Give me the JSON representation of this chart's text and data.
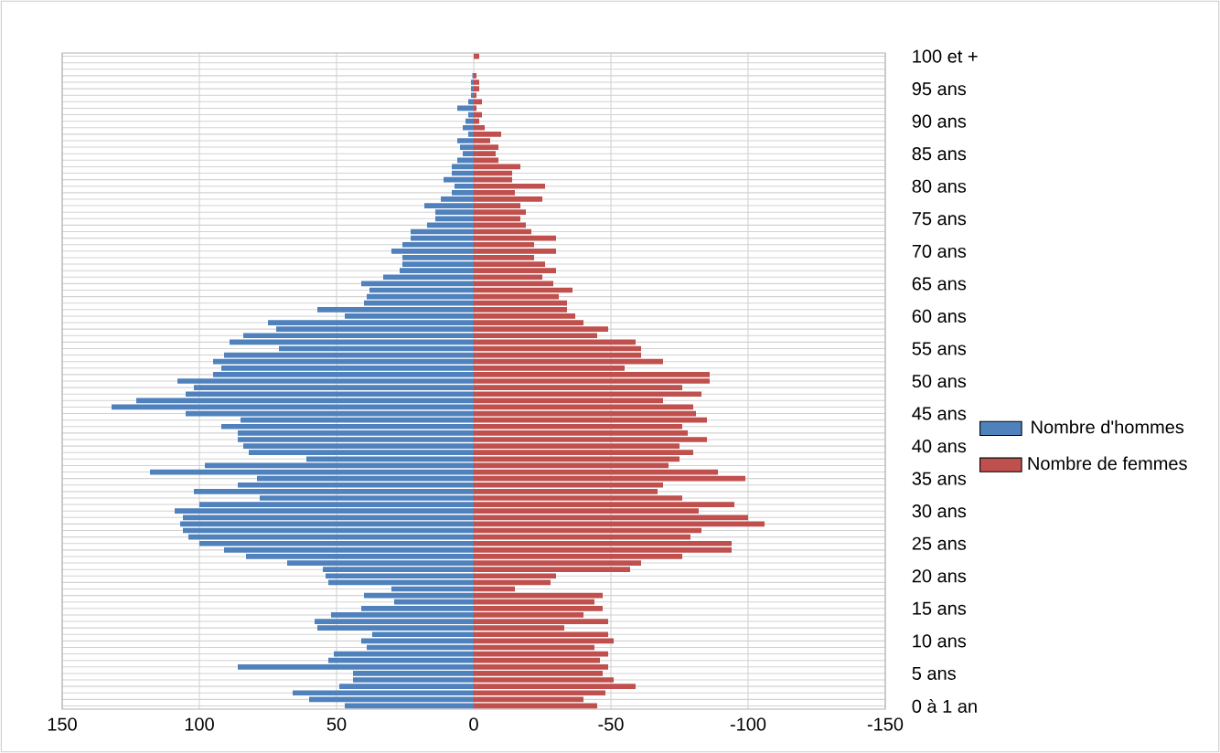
{
  "chart_data": {
    "type": "bar",
    "orientation": "horizontal",
    "categories": [
      "100 et +",
      null,
      null,
      null,
      null,
      "95 ans",
      null,
      null,
      null,
      null,
      "90 ans",
      null,
      null,
      null,
      null,
      "85 ans",
      null,
      null,
      null,
      null,
      "80 ans",
      null,
      null,
      null,
      null,
      "75 ans",
      null,
      null,
      null,
      null,
      "70 ans",
      null,
      null,
      null,
      null,
      "65 ans",
      null,
      null,
      null,
      null,
      "60 ans",
      null,
      null,
      null,
      null,
      "55 ans",
      null,
      null,
      null,
      null,
      "50 ans",
      null,
      null,
      null,
      null,
      "45 ans",
      null,
      null,
      null,
      null,
      "40 ans",
      null,
      null,
      null,
      null,
      "35 ans",
      null,
      null,
      null,
      null,
      "30 ans",
      null,
      null,
      null,
      null,
      "25 ans",
      null,
      null,
      null,
      null,
      "20 ans",
      null,
      null,
      null,
      null,
      "15 ans",
      null,
      null,
      null,
      null,
      "10 ans",
      null,
      null,
      null,
      null,
      "5 ans",
      null,
      null,
      null,
      null,
      "0 à 1 an"
    ],
    "series": [
      {
        "name": "Nombre de femmes",
        "color": "#c0504d",
        "values": [
          -2,
          0,
          0,
          -1,
          -2,
          -2,
          -1,
          -3,
          -1,
          -3,
          -2,
          -4,
          -10,
          -6,
          -9,
          -8,
          -9,
          -17,
          -14,
          -14,
          -26,
          -15,
          -25,
          -17,
          -19,
          -17,
          -19,
          -21,
          -30,
          -22,
          -30,
          -22,
          -26,
          -30,
          -25,
          -29,
          -36,
          -31,
          -34,
          -34,
          -37,
          -40,
          -49,
          -45,
          -59,
          -61,
          -61,
          -69,
          -55,
          -86,
          -86,
          -76,
          -83,
          -69,
          -80,
          -81,
          -85,
          -76,
          -78,
          -85,
          -75,
          -80,
          -75,
          -71,
          -89,
          -99,
          -69,
          -67,
          -76,
          -95,
          -82,
          -100,
          -106,
          -83,
          -79,
          -94,
          -94,
          -76,
          -61,
          -57,
          -30,
          -28,
          -15,
          -47,
          -44,
          -47,
          -40,
          -49,
          -33,
          -49,
          -51,
          -44,
          -49,
          -46,
          -49,
          -47,
          -51,
          -59,
          -48,
          -40,
          -45
        ]
      },
      {
        "name": "Nombre d'hommes",
        "color": "#4f81bd",
        "values": [
          0,
          0,
          0,
          0.5,
          1,
          1,
          1,
          2,
          6,
          2,
          3,
          4,
          2,
          6,
          5,
          4,
          6,
          8,
          8,
          11,
          7,
          8,
          12,
          18,
          14,
          14,
          17,
          23,
          23,
          26,
          30,
          26,
          26,
          27,
          33,
          41,
          38,
          39,
          40,
          57,
          47,
          75,
          72,
          84,
          89,
          71,
          91,
          95,
          92,
          95,
          108,
          102,
          105,
          123,
          132,
          105,
          85,
          92,
          86,
          86,
          84,
          82,
          61,
          98,
          118,
          79,
          86,
          102,
          78,
          100,
          109,
          106,
          107,
          106,
          104,
          100,
          91,
          83,
          68,
          55,
          54,
          53,
          30,
          40,
          29,
          41,
          52,
          58,
          57,
          37,
          41,
          39,
          51,
          53,
          86,
          44,
          44,
          49,
          66,
          60,
          47
        ]
      }
    ],
    "xlim": [
      150,
      -150
    ],
    "xticks": [
      150,
      100,
      50,
      0,
      -50,
      -100,
      -150
    ],
    "stacked": true,
    "grid": true,
    "legend": "right"
  }
}
